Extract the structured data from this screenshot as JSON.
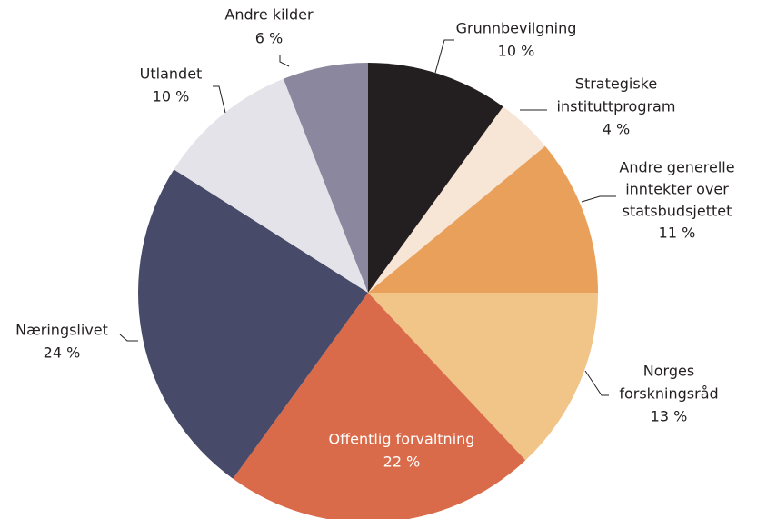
{
  "chart_data": {
    "type": "pie",
    "categories": [
      [
        "Grunnbevilgning"
      ],
      [
        "Strategiske",
        "instituttprogram"
      ],
      [
        "Andre generelle",
        "inntekter over",
        "statsbudsjettet"
      ],
      [
        "Norges",
        "forskningsråd"
      ],
      [
        "Offentlig forvaltning"
      ],
      [
        "Næringslivet"
      ],
      [
        "Utlandet"
      ],
      [
        "Andre kilder"
      ]
    ],
    "values": [
      10,
      4,
      11,
      13,
      22,
      24,
      10,
      6
    ],
    "value_labels": [
      "10 %",
      "4 %",
      "11 %",
      "13 %",
      "22 %",
      "24 %",
      "10 %",
      "6 %"
    ],
    "colors": [
      "#231f20",
      "#f7e6d6",
      "#e9a05a",
      "#f1c488",
      "#d96b4a",
      "#474a68",
      "#e4e3ea",
      "#8b879e"
    ]
  }
}
